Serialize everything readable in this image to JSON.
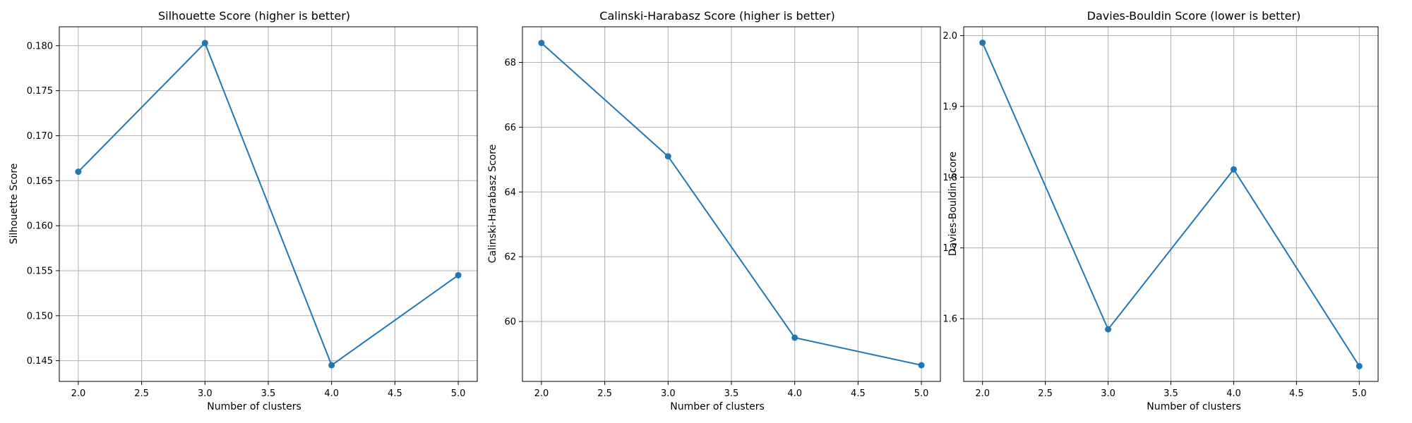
{
  "figure": {
    "line_color": "#1f77b4"
  },
  "chart_data": [
    {
      "type": "line",
      "title": "Silhouette Score (higher is better)",
      "xlabel": "Number of clusters",
      "ylabel": "Silhouette Score",
      "x": [
        2,
        3,
        4,
        5
      ],
      "y": [
        0.166,
        0.1803,
        0.1445,
        0.1545
      ],
      "marker": "circle",
      "xlim": [
        1.85,
        5.15
      ],
      "ylim": [
        0.1427,
        0.1821
      ],
      "xticks": [
        2.0,
        2.5,
        3.0,
        3.5,
        4.0,
        4.5,
        5.0
      ],
      "xtick_labels": [
        "2.0",
        "2.5",
        "3.0",
        "3.5",
        "4.0",
        "4.5",
        "5.0"
      ],
      "yticks": [
        0.145,
        0.15,
        0.155,
        0.16,
        0.165,
        0.17,
        0.175,
        0.18
      ],
      "ytick_labels": [
        "0.145",
        "0.150",
        "0.155",
        "0.160",
        "0.165",
        "0.170",
        "0.175",
        "0.180"
      ],
      "grid": true
    },
    {
      "type": "line",
      "title": "Calinski-Harabasz Score (higher is better)",
      "xlabel": "Number of clusters",
      "ylabel": "Calinski-Harabasz Score",
      "x": [
        2,
        3,
        4,
        5
      ],
      "y": [
        68.6,
        65.1,
        59.5,
        58.65
      ],
      "marker": "circle",
      "xlim": [
        1.85,
        5.15
      ],
      "ylim": [
        58.15,
        69.1
      ],
      "xticks": [
        2.0,
        2.5,
        3.0,
        3.5,
        4.0,
        4.5,
        5.0
      ],
      "xtick_labels": [
        "2.0",
        "2.5",
        "3.0",
        "3.5",
        "4.0",
        "4.5",
        "5.0"
      ],
      "yticks": [
        60,
        62,
        64,
        66,
        68
      ],
      "ytick_labels": [
        "60",
        "62",
        "64",
        "66",
        "68"
      ],
      "grid": true
    },
    {
      "type": "line",
      "title": "Davies-Bouldin Score (lower is better)",
      "xlabel": "Number of clusters",
      "ylabel": "Davies-Bouldin Score",
      "x": [
        2,
        3,
        4,
        5
      ],
      "y": [
        1.99,
        1.585,
        1.811,
        1.533
      ],
      "marker": "circle",
      "xlim": [
        1.85,
        5.15
      ],
      "ylim": [
        1.5114,
        2.0125
      ],
      "xticks": [
        2.0,
        2.5,
        3.0,
        3.5,
        4.0,
        4.5,
        5.0
      ],
      "xtick_labels": [
        "2.0",
        "2.5",
        "3.0",
        "3.5",
        "4.0",
        "4.5",
        "5.0"
      ],
      "yticks": [
        1.6,
        1.7,
        1.8,
        1.9,
        2.0
      ],
      "ytick_labels": [
        "1.6",
        "1.7",
        "1.8",
        "1.9",
        "2.0"
      ],
      "grid": true
    }
  ]
}
